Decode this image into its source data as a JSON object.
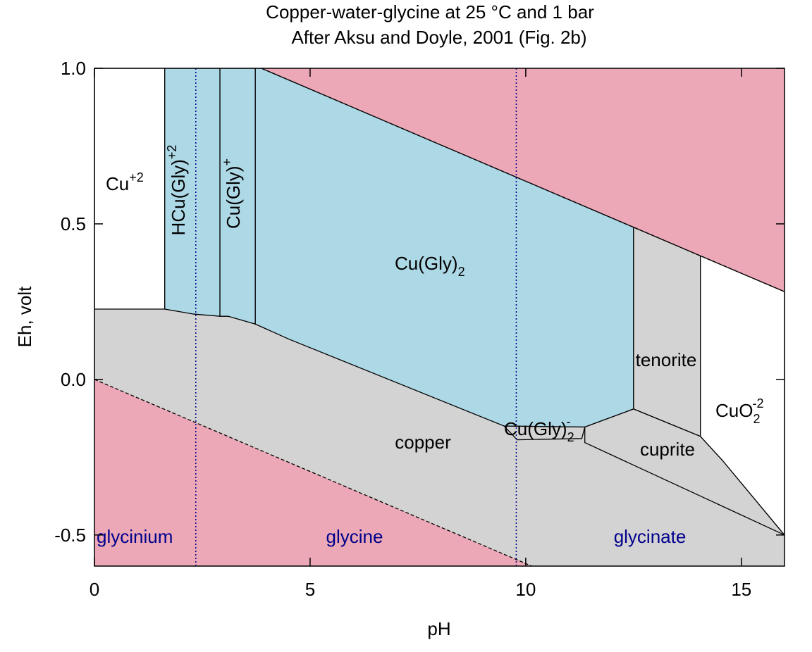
{
  "chart_data": {
    "type": "pourbaix",
    "title": "Copper-water-glycine at 25 °C and 1 bar",
    "subtitle": "After Aksu and Doyle, 2001 (Fig. 2b)",
    "xlabel": "pH",
    "ylabel": "Eh, volt",
    "xlim": [
      0,
      16
    ],
    "ylim": [
      -0.6,
      1.0
    ],
    "xticks": [
      0,
      5,
      10,
      15
    ],
    "yticks": [
      {
        "value": -0.5,
        "label": "-0.5"
      },
      {
        "value": 0,
        "label": "0.0"
      },
      {
        "value": 0.5,
        "label": "0.5"
      },
      {
        "value": 1.0,
        "label": "1.0"
      }
    ],
    "regions": [
      {
        "label": {
          "base": "copper"
        },
        "color": "#d3d3d3",
        "x": [
          0,
          16,
          16,
          0
        ],
        "y": [
          -0.6,
          -0.6,
          1.0,
          1.0
        ]
      },
      {
        "color": "#eca8b6",
        "x": [
          3.87,
          16,
          16
        ],
        "y": [
          1.0,
          1.0,
          0.282
        ]
      },
      {
        "color": "#eca8b6",
        "x": [
          0,
          0,
          10.14
        ],
        "y": [
          0,
          -0.6,
          -0.6
        ]
      },
      {
        "label": {
          "base": "Cu",
          "sup": "+2"
        },
        "color": "#ffffff",
        "x": [
          0,
          1.63,
          1.63,
          0
        ],
        "y": [
          0.226,
          0.226,
          1.0,
          1.0
        ]
      },
      {
        "label": {
          "base": "HCu(Gly)",
          "sup": "+2"
        },
        "color": "#add8e6",
        "x": [
          1.63,
          2.3,
          2.91,
          2.91,
          1.63
        ],
        "y": [
          0.226,
          0.21,
          0.203,
          1.0,
          1.0
        ]
      },
      {
        "label": {
          "base": "Cu(Gly)",
          "sup": "+"
        },
        "color": "#add8e6",
        "x": [
          2.91,
          3.1,
          3.73,
          3.73,
          2.91
        ],
        "y": [
          0.203,
          0.203,
          0.178,
          1.0,
          1.0
        ]
      },
      {
        "label": {
          "base": "Cu(Gly)",
          "sub": "2"
        },
        "color": "#add8e6",
        "x": [
          3.73,
          4.5,
          9.5,
          11.37,
          12.5,
          12.5,
          3.87,
          3.73
        ],
        "y": [
          0.178,
          0.13,
          -0.15,
          -0.153,
          -0.095,
          0.489,
          1.0,
          1.0
        ]
      },
      {
        "label": {
          "base": "Cu(Gly)",
          "sub": "2",
          "sup": "-"
        },
        "color": "#d3d3d3",
        "x": [
          9.5,
          11.37,
          11.3,
          9.8
        ],
        "y": [
          -0.15,
          -0.153,
          -0.19,
          -0.194
        ]
      },
      {
        "label": {
          "base": "tenorite"
        },
        "color": "#d3d3d3",
        "x": [
          12.5,
          14.05,
          14.05,
          12.5
        ],
        "y": [
          -0.095,
          -0.183,
          0.397,
          0.489
        ]
      },
      {
        "label": {
          "base": "cuprite"
        },
        "color": "#d3d3d3",
        "x": [
          11.37,
          12.5,
          14.05,
          14.56,
          16,
          11.37
        ],
        "y": [
          -0.153,
          -0.095,
          -0.183,
          -0.26,
          -0.5,
          -0.203
        ]
      },
      {
        "label": {
          "base": "CuO",
          "sub": "2",
          "sup": "-2"
        },
        "color": "#ffffff",
        "x": [
          14.05,
          16,
          16,
          14.56,
          14.05
        ],
        "y": [
          0.397,
          0.282,
          -0.5,
          -0.26,
          -0.183
        ]
      }
    ],
    "water_lines": [
      {
        "x": [
          3.87,
          16
        ],
        "y": [
          1.0,
          0.282
        ]
      },
      {
        "x": [
          0,
          10.14
        ],
        "y": [
          0,
          -0.6
        ]
      }
    ],
    "pka_lines": [
      2.35,
      9.78
    ],
    "pka_color": "#00008b",
    "zones": [
      "glycinium",
      "glycine",
      "glycinate"
    ]
  }
}
